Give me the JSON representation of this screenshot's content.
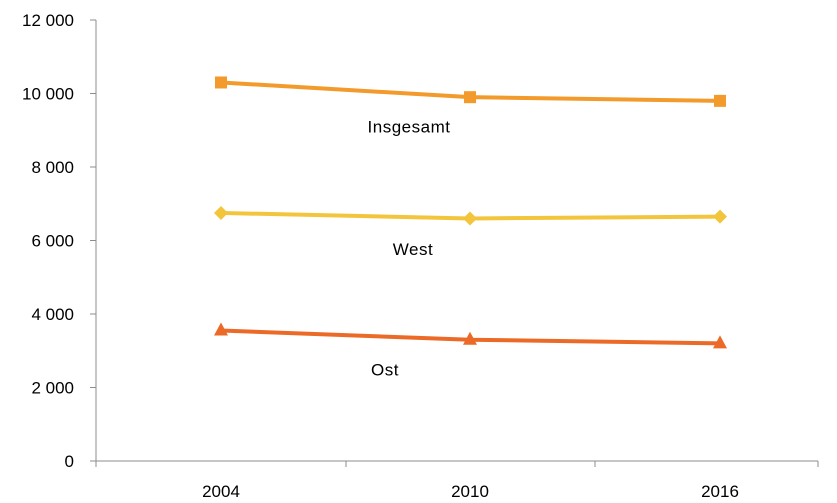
{
  "chart_data": {
    "type": "line",
    "title": "",
    "xlabel": "",
    "ylabel": "",
    "categories": [
      "2004",
      "2010",
      "2016"
    ],
    "ylim": [
      0,
      12000
    ],
    "yticks": [
      0,
      2000,
      4000,
      6000,
      8000,
      10000,
      12000
    ],
    "ytick_labels": [
      "0",
      "2 000",
      "4 000",
      "6 000",
      "8 000",
      "10 000",
      "12 000"
    ],
    "grid": false,
    "legend": "none",
    "series": [
      {
        "name": "Insgesamt",
        "values": [
          10300,
          9900,
          9800
        ],
        "color": "#F39A2C",
        "marker": "square"
      },
      {
        "name": "West",
        "values": [
          6750,
          6600,
          6650
        ],
        "color": "#F2C53D",
        "marker": "diamond"
      },
      {
        "name": "Ost",
        "values": [
          3550,
          3300,
          3200
        ],
        "color": "#EC6A27",
        "marker": "triangle"
      }
    ]
  }
}
